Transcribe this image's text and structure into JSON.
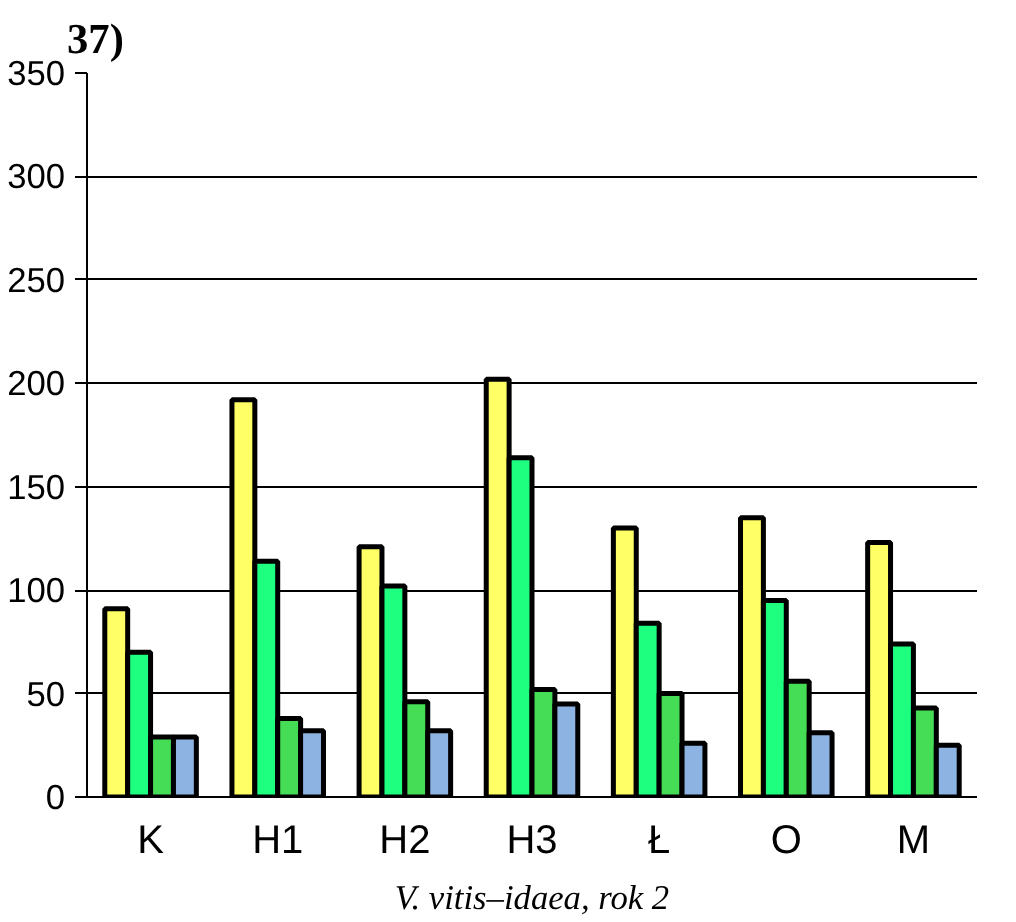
{
  "chart_data": {
    "type": "bar",
    "title": "37)",
    "xlabel": "V. vitis–idaea, rok 2",
    "categories": [
      "K",
      "H1",
      "H2",
      "H3",
      "Ł",
      "O",
      "M"
    ],
    "series": [
      {
        "color": "#ffff66",
        "values": [
          91,
          192,
          121,
          202,
          130,
          135,
          123
        ]
      },
      {
        "color": "#1eff80",
        "values": [
          70,
          114,
          102,
          164,
          84,
          95,
          74
        ]
      },
      {
        "color": "#44dd55",
        "values": [
          29,
          38,
          46,
          52,
          50,
          56,
          43
        ]
      },
      {
        "color": "#8db3e2",
        "values": [
          29,
          32,
          32,
          45,
          26,
          31,
          25
        ]
      }
    ],
    "ylim": [
      0,
      350
    ],
    "yticks": [
      0,
      50,
      100,
      150,
      200,
      250,
      300,
      350
    ],
    "grid": "y"
  }
}
